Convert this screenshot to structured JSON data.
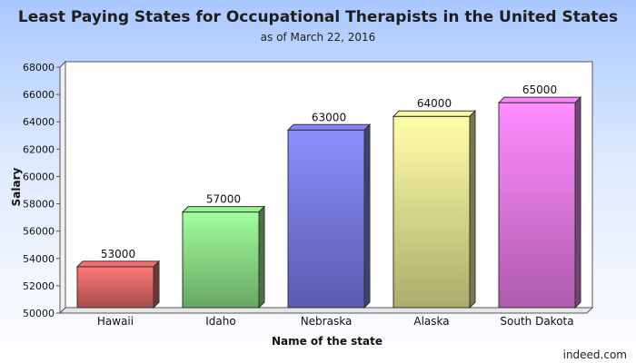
{
  "chart_data": {
    "type": "bar",
    "title": "Least Paying States for Occupational Therapists in the United States",
    "subtitle": "as of March 22, 2016",
    "xlabel": "Name of the state",
    "ylabel": "Salary",
    "categories": [
      "Hawaii",
      "Idaho",
      "Nebraska",
      "Alaska",
      "South Dakota"
    ],
    "values": [
      53000,
      57000,
      63000,
      64000,
      65000
    ],
    "ylim": [
      50000,
      68000
    ],
    "yticks": [
      "50000",
      "52000",
      "54000",
      "56000",
      "58000",
      "60000",
      "62000",
      "64000",
      "66000",
      "68000"
    ],
    "data_labels": [
      "53000",
      "57000",
      "63000",
      "64000",
      "65000"
    ],
    "grid": false,
    "bar_style": "3d",
    "colors": [
      "#e86a6a",
      "#8fe88a",
      "#7d7ff0",
      "#efef96",
      "#f27ef2"
    ]
  },
  "credit": "indeed.com"
}
